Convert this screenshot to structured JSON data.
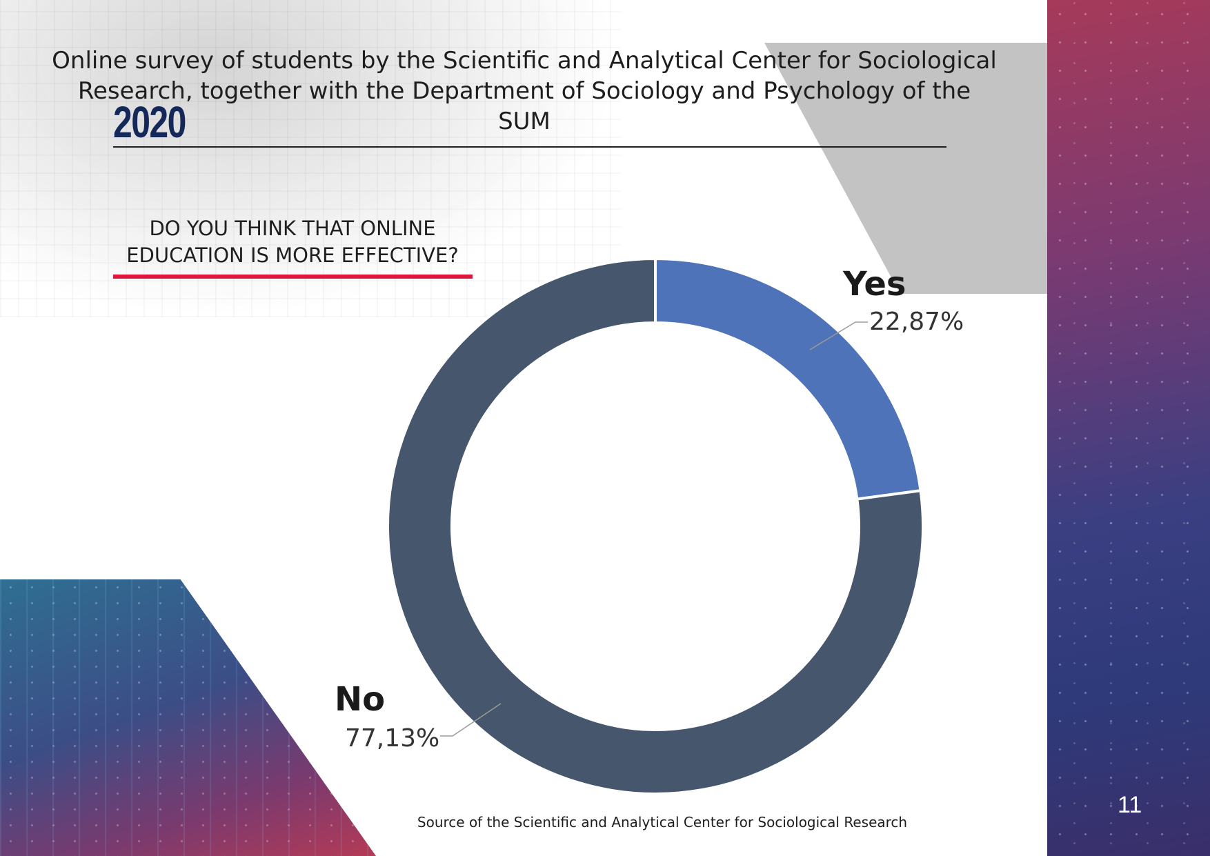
{
  "header": {
    "title": "Online survey of students by the Scientific and Analytical Center for Sociological Research, together with the Department of Sociology and Psychology of the SUM",
    "year": "2020"
  },
  "question": "DO YOU THINK THAT ONLINE EDUCATION IS MORE EFFECTIVE?",
  "source": "Source of the Scientific and Analytical Center for Sociological Research",
  "page_number": "11",
  "colors": {
    "yes": "#4e73b8",
    "no": "#46566d",
    "accent_rule": "#e0173d",
    "year": "#15285a"
  },
  "chart_data": {
    "type": "pie",
    "donut": true,
    "categories": [
      "Yes",
      "No"
    ],
    "values": [
      22.87,
      77.13
    ],
    "value_labels": [
      "22,87%",
      "77,13%"
    ],
    "title": "DO YOU THINK THAT ONLINE EDUCATION IS MORE EFFECTIVE?"
  }
}
